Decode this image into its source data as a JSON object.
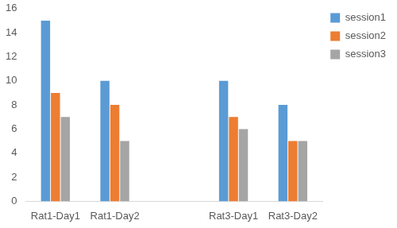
{
  "chart_data": {
    "type": "bar",
    "categories": [
      "Rat1-Day1",
      "Rat1-Day2",
      null,
      "Rat3-Day1",
      "Rat3-Day2"
    ],
    "series": [
      {
        "name": "session1",
        "color": "#5b9bd5",
        "values": [
          15,
          10,
          null,
          10,
          8
        ]
      },
      {
        "name": "session2",
        "color": "#ed7d31",
        "values": [
          9,
          8,
          null,
          7,
          5
        ]
      },
      {
        "name": "session3",
        "color": "#a5a5a5",
        "values": [
          7,
          5,
          null,
          6,
          5
        ]
      }
    ],
    "ylim": [
      0,
      16
    ],
    "yticks": [
      0,
      2,
      4,
      6,
      8,
      10,
      12,
      14,
      16
    ],
    "grid": false,
    "legend": "top-right"
  }
}
